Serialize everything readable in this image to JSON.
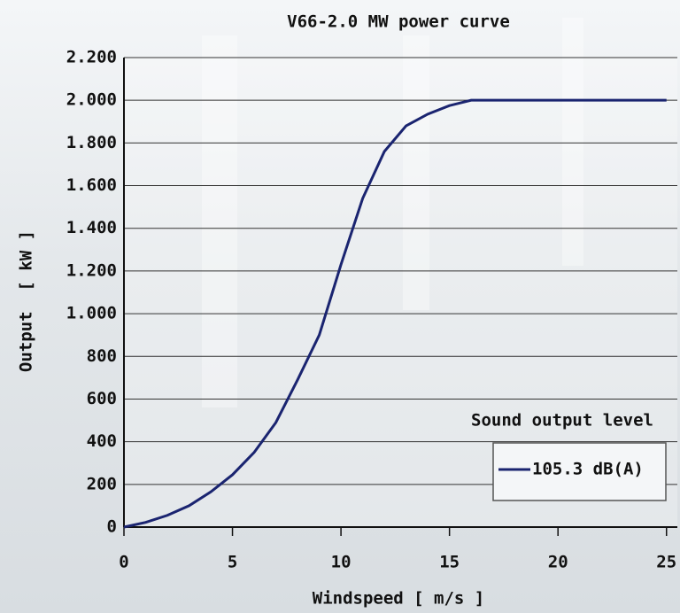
{
  "chart_data": {
    "type": "line",
    "title": "V66-2.0 MW power curve",
    "x_label": "Windspeed [ m/s ]",
    "y_label": "Output  [ kW ]",
    "legend_title": "Sound output level",
    "legend_position": "lower right",
    "grid": true,
    "x": [
      0,
      1,
      2,
      3,
      4,
      5,
      6,
      7,
      8,
      9,
      10,
      11,
      12,
      13,
      14,
      15,
      16,
      17,
      18,
      19,
      20,
      21,
      22,
      23,
      24,
      25
    ],
    "series": [
      {
        "name": "105.3 dB(A)",
        "color": "#1a2470",
        "values": [
          0,
          22,
          55,
          100,
          165,
          245,
          350,
          490,
          690,
          900,
          1230,
          1540,
          1760,
          1880,
          1935,
          1975,
          2000,
          2000,
          2000,
          2000,
          2000,
          2000,
          2000,
          2000,
          2000,
          2000
        ]
      }
    ],
    "xlim": [
      0,
      25.5
    ],
    "xticks": [
      0,
      5,
      10,
      15,
      20,
      25
    ],
    "ylim": [
      0,
      2200
    ],
    "yticks": [
      0,
      200,
      400,
      600,
      800,
      {
        "value": 1000,
        "label": "1.000"
      },
      {
        "value": 1200,
        "label": "1.200"
      },
      {
        "value": 1400,
        "label": "1.400"
      },
      {
        "value": 1600,
        "label": "1.600"
      },
      {
        "value": 1800,
        "label": "1.800"
      },
      {
        "value": 2000,
        "label": "2.000"
      },
      {
        "value": 2200,
        "label": "2.200"
      }
    ]
  }
}
